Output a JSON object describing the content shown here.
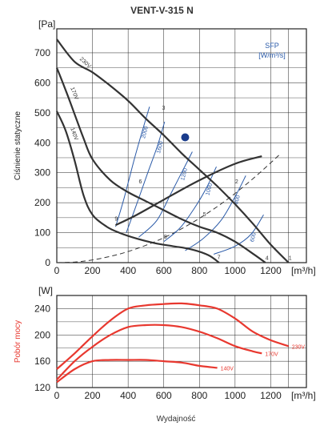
{
  "title": "VENT-V-315 N",
  "x_label": "Wydajność",
  "chart_data": [
    {
      "type": "line",
      "unit_label": "[Pa]",
      "ylabel": "Ciśnienie statyczne",
      "x_unit_label": "[m³/h]",
      "xlim": [
        0,
        1400
      ],
      "ylim": [
        0,
        780
      ],
      "x_ticks": [
        0,
        200,
        400,
        600,
        800,
        1000,
        1200
      ],
      "y_ticks": [
        0,
        100,
        200,
        300,
        400,
        500,
        600,
        700
      ],
      "grid": true,
      "sfp_legend": "SFP [W/m³/s]",
      "series": [
        {
          "name": "230V",
          "color": "#333333",
          "points": [
            [
              0,
              745
            ],
            [
              100,
              670
            ],
            [
              200,
              635
            ],
            [
              300,
              590
            ],
            [
              400,
              540
            ],
            [
              500,
              480
            ],
            [
              600,
              425
            ],
            [
              700,
              365
            ],
            [
              800,
              310
            ],
            [
              900,
              255
            ],
            [
              1000,
              195
            ],
            [
              1100,
              130
            ],
            [
              1200,
              60
            ],
            [
              1300,
              0
            ]
          ]
        },
        {
          "name": "170V",
          "color": "#333333",
          "points": [
            [
              0,
              650
            ],
            [
              50,
              575
            ],
            [
              100,
              495
            ],
            [
              150,
              415
            ],
            [
              200,
              345
            ],
            [
              300,
              275
            ],
            [
              400,
              235
            ],
            [
              500,
              205
            ],
            [
              600,
              175
            ],
            [
              700,
              145
            ],
            [
              800,
              120
            ],
            [
              900,
              100
            ],
            [
              1000,
              70
            ],
            [
              1100,
              30
            ],
            [
              1170,
              0
            ]
          ]
        },
        {
          "name": "140V",
          "color": "#333333",
          "points": [
            [
              0,
              505
            ],
            [
              50,
              440
            ],
            [
              100,
              340
            ],
            [
              150,
              225
            ],
            [
              200,
              160
            ],
            [
              280,
              120
            ],
            [
              350,
              100
            ],
            [
              450,
              80
            ],
            [
              550,
              65
            ],
            [
              650,
              55
            ],
            [
              750,
              45
            ],
            [
              850,
              25
            ],
            [
              910,
              0
            ]
          ]
        },
        {
          "name": "",
          "color": "#333333",
          "points": [
            [
              330,
              125
            ],
            [
              450,
              160
            ],
            [
              600,
              210
            ],
            [
              800,
              275
            ],
            [
              1000,
              330
            ],
            [
              1150,
              355
            ]
          ]
        }
      ],
      "system_curves": [
        [
          0,
          0
        ],
        [
          100,
          2
        ],
        [
          200,
          9
        ],
        [
          300,
          21
        ],
        [
          400,
          37
        ],
        [
          500,
          58
        ],
        [
          600,
          83
        ],
        [
          700,
          113
        ],
        [
          800,
          148
        ],
        [
          900,
          187
        ],
        [
          1000,
          231
        ],
        [
          1100,
          280
        ],
        [
          1200,
          333
        ],
        [
          1250,
          361
        ]
      ],
      "sfp_curves": [
        {
          "label": "2000",
          "points": [
            [
              520,
              520
            ],
            [
              480,
              440
            ],
            [
              435,
              345
            ],
            [
              375,
              210
            ],
            [
              330,
              120
            ]
          ]
        },
        {
          "label": "1600",
          "points": [
            [
              605,
              470
            ],
            [
              565,
              390
            ],
            [
              510,
              300
            ],
            [
              460,
              215
            ],
            [
              390,
              100
            ]
          ]
        },
        {
          "label": "1200",
          "points": [
            [
              760,
              370
            ],
            [
              700,
              300
            ],
            [
              640,
              230
            ],
            [
              560,
              140
            ],
            [
              460,
              85
            ]
          ]
        },
        {
          "label": "1000",
          "points": [
            [
              895,
              320
            ],
            [
              840,
              250
            ],
            [
              770,
              180
            ],
            [
              690,
              115
            ],
            [
              600,
              70
            ]
          ]
        },
        {
          "label": "800",
          "points": [
            [
              1060,
              290
            ],
            [
              1000,
              220
            ],
            [
              920,
              140
            ],
            [
              820,
              80
            ],
            [
              720,
              40
            ]
          ]
        },
        {
          "label": "600",
          "points": [
            [
              1160,
              160
            ],
            [
              1090,
              95
            ],
            [
              1000,
              55
            ],
            [
              880,
              28
            ]
          ]
        }
      ],
      "point_labels": [
        {
          "label": "1",
          "x": 1300,
          "y": 10
        },
        {
          "label": "2",
          "x": 1000,
          "y": 265
        },
        {
          "label": "3",
          "x": 590,
          "y": 510
        },
        {
          "label": "4",
          "x": 1170,
          "y": 10
        },
        {
          "label": "5",
          "x": 820,
          "y": 155
        },
        {
          "label": "6",
          "x": 460,
          "y": 265
        },
        {
          "label": "7",
          "x": 900,
          "y": 12
        },
        {
          "label": "8",
          "x": 600,
          "y": 80
        },
        {
          "label": "9",
          "x": 325,
          "y": 140
        }
      ],
      "operating_point": {
        "x": 720,
        "y": 418,
        "color": "#1a3c8c"
      }
    },
    {
      "type": "line",
      "unit_label": "[W]",
      "ylabel": "Pobór mocy",
      "x_unit_label": "[m³/h]",
      "xlim": [
        0,
        1400
      ],
      "ylim": [
        120,
        260
      ],
      "x_ticks": [
        0,
        200,
        400,
        600,
        800,
        1000,
        1200
      ],
      "y_ticks": [
        120,
        160,
        200,
        240
      ],
      "grid": true,
      "series": [
        {
          "name": "230V",
          "color": "#e8382f",
          "points": [
            [
              0,
              148
            ],
            [
              100,
              172
            ],
            [
              200,
              198
            ],
            [
              300,
              222
            ],
            [
              400,
              240
            ],
            [
              500,
              245
            ],
            [
              600,
              247
            ],
            [
              700,
              248
            ],
            [
              800,
              245
            ],
            [
              900,
              240
            ],
            [
              1000,
              225
            ],
            [
              1100,
              205
            ],
            [
              1200,
              192
            ],
            [
              1300,
              183
            ]
          ]
        },
        {
          "name": "170V",
          "color": "#e8382f",
          "points": [
            [
              0,
              132
            ],
            [
              100,
              160
            ],
            [
              200,
              182
            ],
            [
              300,
              200
            ],
            [
              400,
              212
            ],
            [
              500,
              215
            ],
            [
              600,
              215
            ],
            [
              700,
              212
            ],
            [
              800,
              205
            ],
            [
              900,
              195
            ],
            [
              1000,
              183
            ],
            [
              1100,
              175
            ],
            [
              1150,
              172
            ]
          ]
        },
        {
          "name": "140V",
          "color": "#e8382f",
          "points": [
            [
              0,
              128
            ],
            [
              100,
              148
            ],
            [
              200,
              160
            ],
            [
              300,
              162
            ],
            [
              400,
              162
            ],
            [
              500,
              162
            ],
            [
              600,
              160
            ],
            [
              700,
              158
            ],
            [
              800,
              153
            ],
            [
              900,
              150
            ]
          ]
        }
      ]
    }
  ]
}
